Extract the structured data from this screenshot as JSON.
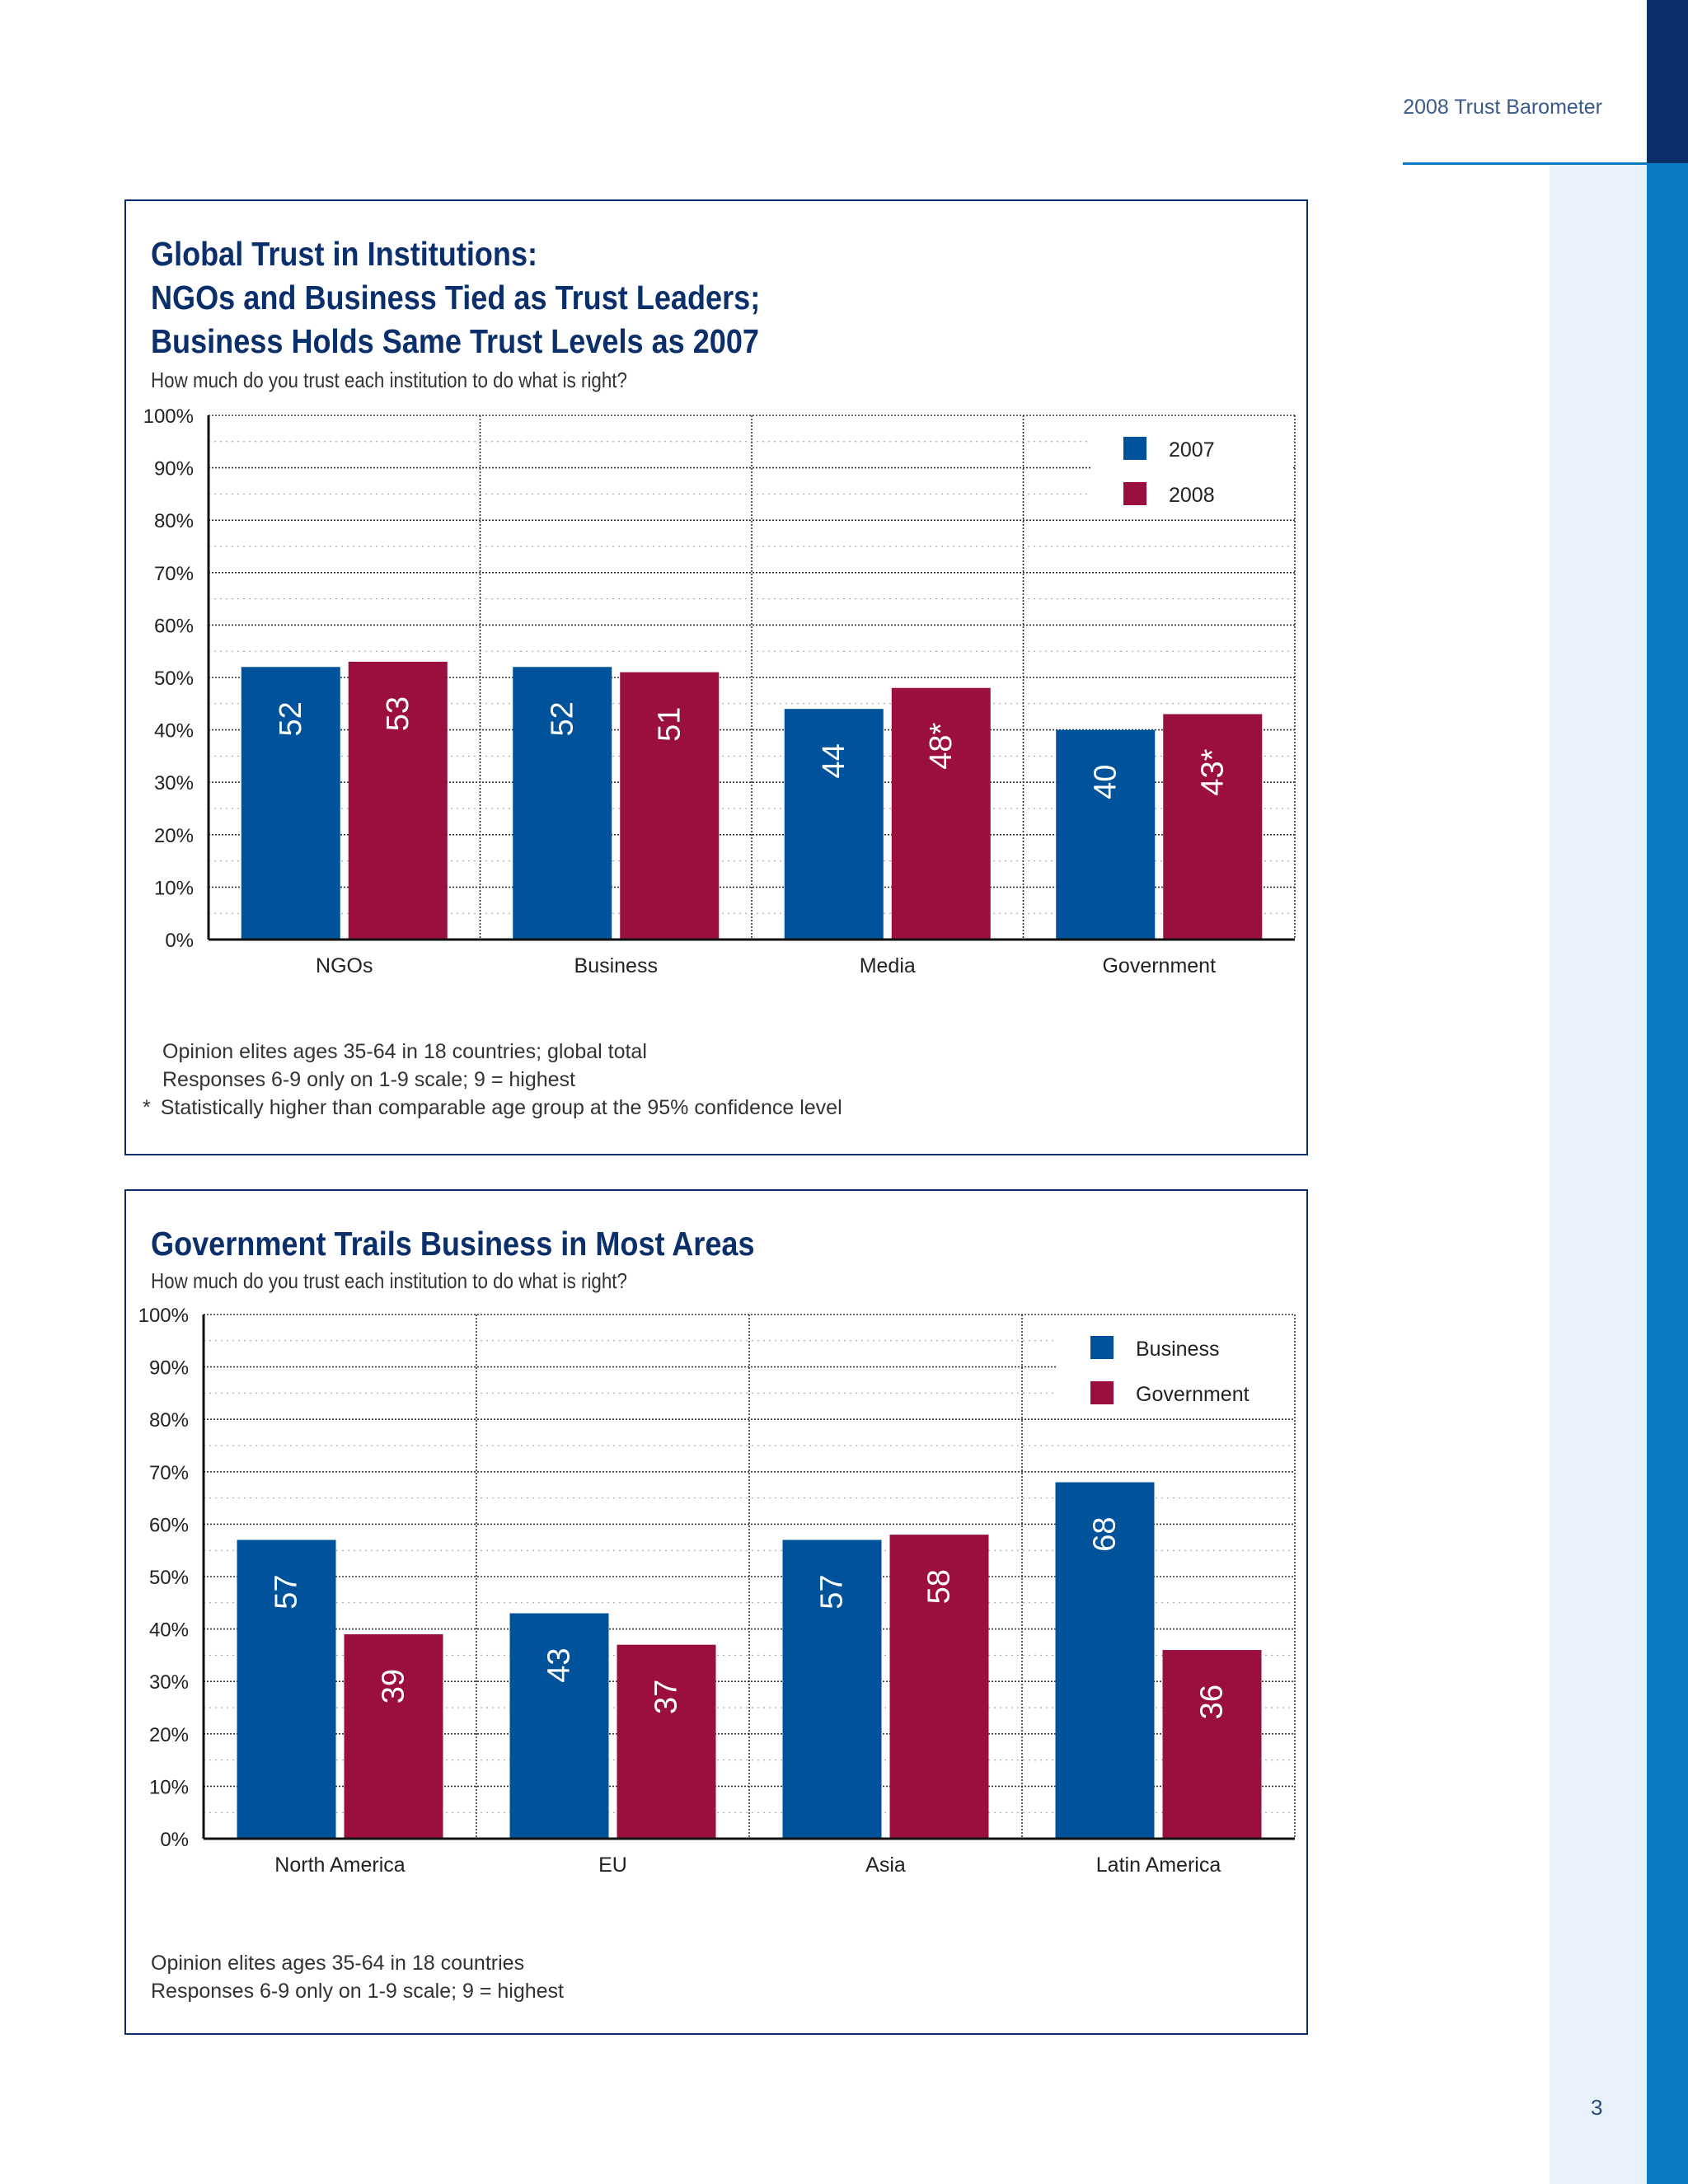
{
  "header": {
    "text": "2008 Trust Barometer"
  },
  "page_number": "3",
  "panels": [
    {
      "title_lines": [
        "Global Trust in Institutions:",
        "NGOs and Business Tied as Trust Leaders;",
        "Business Holds Same Trust Levels as 2007"
      ],
      "subtitle": "How much do you trust each institution to do what is right?",
      "notes": [
        {
          "marker": "",
          "text": "Opinion elites ages 35-64 in 18 countries; global total"
        },
        {
          "marker": "",
          "text": "Responses 6-9 only on 1-9 scale; 9 = highest"
        },
        {
          "marker": "*",
          "text": "Statistically higher than comparable age group at the 95% confidence level"
        }
      ]
    },
    {
      "title_lines": [
        "Government Trails Business in Most Areas"
      ],
      "subtitle": "How much do you trust each institution to do what is right?",
      "notes": [
        {
          "marker": "",
          "text": "Opinion elites ages 35-64 in 18 countries"
        },
        {
          "marker": "",
          "text": "Responses 6-9 only on 1-9 scale; 9 = highest"
        }
      ]
    }
  ],
  "colors": {
    "series_a": "#00529b",
    "series_b": "#9b0f3c",
    "frame": "#0b2f6b",
    "accent": "#0b7ac4"
  },
  "chart_data": [
    {
      "type": "bar",
      "categories": [
        "NGOs",
        "Business",
        "Media",
        "Government"
      ],
      "series": [
        {
          "name": "2007",
          "values": [
            52,
            52,
            44,
            40
          ],
          "labels": [
            "52",
            "52",
            "44",
            "40"
          ]
        },
        {
          "name": "2008",
          "values": [
            53,
            51,
            48,
            43
          ],
          "labels": [
            "53",
            "51",
            "48*",
            "43*"
          ]
        }
      ],
      "yticks": [
        "0%",
        "10%",
        "20%",
        "30%",
        "40%",
        "50%",
        "60%",
        "70%",
        "80%",
        "90%",
        "100%"
      ],
      "ylim": [
        0,
        100
      ],
      "grid": true,
      "legend": "top-right"
    },
    {
      "type": "bar",
      "categories": [
        "North America",
        "EU",
        "Asia",
        "Latin America"
      ],
      "series": [
        {
          "name": "Business",
          "values": [
            57,
            43,
            57,
            68
          ],
          "labels": [
            "57",
            "43",
            "57",
            "68"
          ]
        },
        {
          "name": "Government",
          "values": [
            39,
            37,
            58,
            36
          ],
          "labels": [
            "39",
            "37",
            "58",
            "36"
          ]
        }
      ],
      "yticks": [
        "0%",
        "10%",
        "20%",
        "30%",
        "40%",
        "50%",
        "60%",
        "70%",
        "80%",
        "90%",
        "100%"
      ],
      "ylim": [
        0,
        100
      ],
      "grid": true,
      "legend": "top-right"
    }
  ]
}
